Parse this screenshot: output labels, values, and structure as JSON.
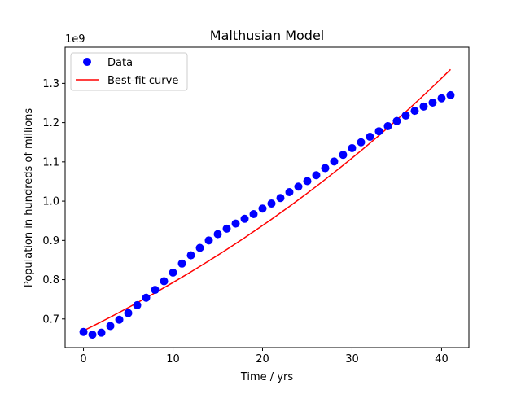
{
  "chart_data": {
    "type": "scatter",
    "title": "Malthusian Model",
    "xlabel": "Time / yrs",
    "ylabel": "Population in hundreds of millions",
    "y_offset_label": "1e9",
    "xlim": [
      -2.05,
      43.05
    ],
    "ylim": [
      627000000.0,
      1392000000.0
    ],
    "xticks": [
      0,
      10,
      20,
      30,
      40
    ],
    "yticks": [
      700000000,
      800000000,
      900000000,
      1000000000,
      1100000000,
      1200000000,
      1300000000
    ],
    "ytick_labels": [
      "0.7",
      "0.8",
      "0.9",
      "1.0",
      "1.1",
      "1.2",
      "1.3"
    ],
    "grid": false,
    "legend_position": "top-left",
    "series": [
      {
        "name": "Data",
        "kind": "scatter",
        "color": "#0000ff",
        "x": [
          0,
          1,
          2,
          3,
          4,
          5,
          6,
          7,
          8,
          9,
          10,
          11,
          12,
          13,
          14,
          15,
          16,
          17,
          18,
          19,
          20,
          21,
          22,
          23,
          24,
          25,
          26,
          27,
          28,
          29,
          30,
          31,
          32,
          33,
          34,
          35,
          36,
          37,
          38,
          39,
          40,
          41
        ],
        "y": [
          667000000,
          660000000,
          665000000,
          682000000,
          698000000,
          715000000,
          735000000,
          754000000,
          774000000,
          796000000,
          818000000,
          841000000,
          862000000,
          881000000,
          900000000,
          916000000,
          930000000,
          943000000,
          955000000,
          967000000,
          981000000,
          994000000,
          1008000000,
          1023000000,
          1037000000,
          1051000000,
          1066000000,
          1084000000,
          1101000000,
          1118000000,
          1135000000,
          1150000000,
          1164000000,
          1178000000,
          1191000000,
          1204000000,
          1218000000,
          1230000000,
          1241000000,
          1251000000,
          1262000000,
          1270000000
        ]
      },
      {
        "name": "Best-fit curve",
        "kind": "line",
        "color": "#ff0000",
        "x": [
          0,
          1,
          2,
          3,
          4,
          5,
          6,
          7,
          8,
          9,
          10,
          11,
          12,
          13,
          14,
          15,
          16,
          17,
          18,
          19,
          20,
          21,
          22,
          23,
          24,
          25,
          26,
          27,
          28,
          29,
          30,
          31,
          32,
          33,
          34,
          35,
          36,
          37,
          38,
          39,
          40,
          41
        ],
        "y": [
          670000000,
          681370000,
          692920000,
          704680000,
          716630000,
          728790000,
          741150000,
          753720000,
          766500000,
          779510000,
          792730000,
          806180000,
          819860000,
          833760000,
          847910000,
          862290000,
          876920000,
          891800000,
          906930000,
          922320000,
          937960000,
          953880000,
          970060000,
          986520000,
          1003250000,
          1020280000,
          1037590000,
          1055190000,
          1073100000,
          1091300000,
          1109820000,
          1128650000,
          1147800000,
          1167270000,
          1187070000,
          1207210000,
          1227680000,
          1248510000,
          1269690000,
          1291230000,
          1313130000,
          1335400000
        ]
      }
    ]
  }
}
